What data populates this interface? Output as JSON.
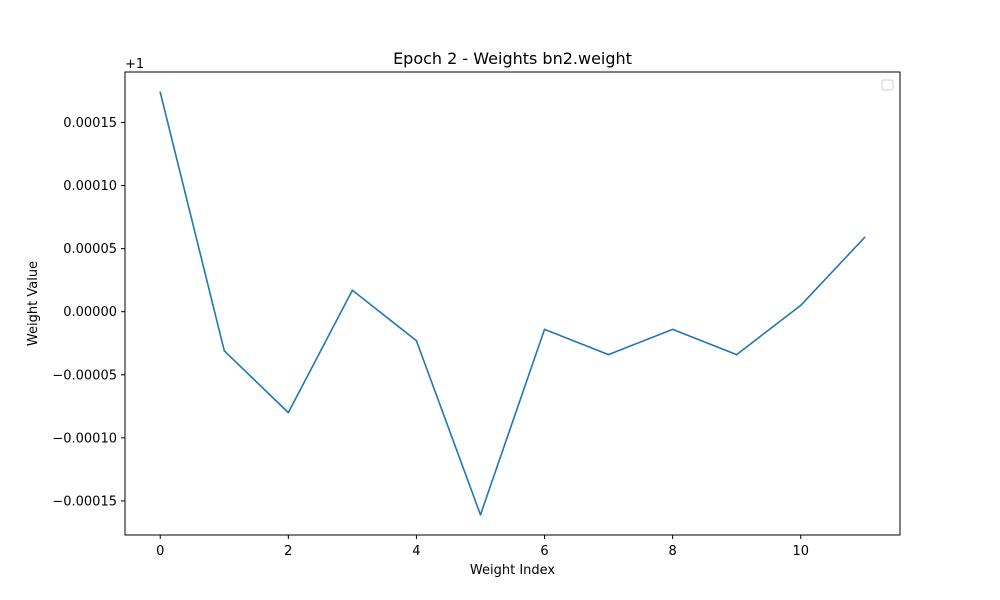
{
  "chart_data": {
    "type": "line",
    "title": "Epoch 2 - Weights bn2.weight",
    "xlabel": "Weight Index",
    "ylabel": "Weight Value",
    "offset_label": "+1",
    "offset": 1,
    "x": [
      0,
      1,
      2,
      3,
      4,
      5,
      6,
      7,
      8,
      9,
      10,
      11
    ],
    "series": [
      {
        "values": [
          1.000174,
          0.999969,
          0.99992,
          1.000017,
          0.999977,
          0.999839,
          0.999986,
          0.999966,
          0.999986,
          0.999966,
          1.000005,
          1.000059
        ],
        "color": "#1f77b4"
      }
    ],
    "xlim": [
      -0.55,
      11.55
    ],
    "ylim": [
      0.999823,
      1.00019
    ],
    "xticks": [
      0,
      2,
      4,
      6,
      8,
      10
    ],
    "xtick_labels": [
      "0",
      "2",
      "4",
      "6",
      "8",
      "10"
    ],
    "yticks": [
      -0.00015,
      -0.0001,
      -5e-05,
      0.0,
      5e-05,
      0.0001,
      0.00015
    ],
    "ytick_labels": [
      "−0.00015",
      "−0.00010",
      "−0.00005",
      "0.00000",
      "0.00005",
      "0.00010",
      "0.00015"
    ],
    "grid": false,
    "legend": "top-right (empty)"
  }
}
